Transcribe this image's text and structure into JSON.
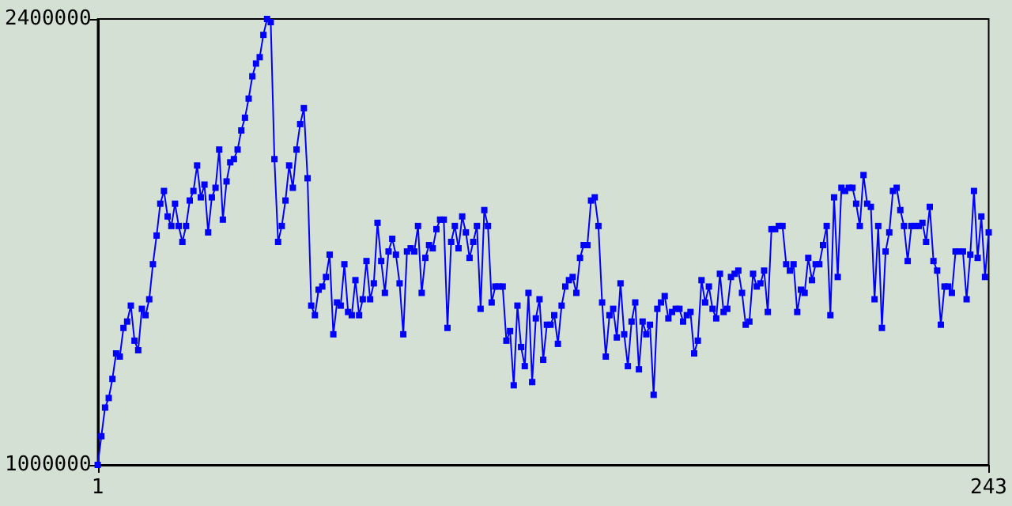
{
  "chart_data": {
    "type": "line",
    "marker": "square",
    "line_style": "solid",
    "grid": false,
    "xlim": [
      1,
      243
    ],
    "xticks": [
      1,
      243
    ],
    "ylim": [
      1000000,
      2400000
    ],
    "yticks": [
      1000000,
      2400000
    ],
    "series": [
      {
        "color": "#0000ff",
        "x": [
          1,
          2,
          3,
          4,
          5,
          6,
          7,
          8,
          9,
          10,
          11,
          12,
          13,
          14,
          15,
          16,
          17,
          18,
          19,
          20,
          21,
          22,
          23,
          24,
          25,
          26,
          27,
          28,
          29,
          30,
          31,
          32,
          33,
          34,
          35,
          36,
          37,
          38,
          39,
          40,
          41,
          42,
          43,
          44,
          45,
          46,
          47,
          48,
          49,
          50,
          51,
          52,
          53,
          54,
          55,
          56,
          57,
          58,
          59,
          60,
          61,
          62,
          63,
          64,
          65,
          66,
          67,
          68,
          69,
          70,
          71,
          72,
          73,
          74,
          75,
          76,
          77,
          78,
          79,
          80,
          81,
          82,
          83,
          84,
          85,
          86,
          87,
          88,
          89,
          90,
          91,
          92,
          93,
          94,
          95,
          96,
          97,
          98,
          99,
          100,
          101,
          102,
          103,
          104,
          105,
          106,
          107,
          108,
          109,
          110,
          111,
          112,
          113,
          114,
          115,
          116,
          117,
          118,
          119,
          120,
          121,
          122,
          123,
          124,
          125,
          126,
          127,
          128,
          129,
          130,
          131,
          132,
          133,
          134,
          135,
          136,
          137,
          138,
          139,
          140,
          141,
          142,
          143,
          144,
          145,
          146,
          147,
          148,
          149,
          150,
          151,
          152,
          153,
          154,
          155,
          156,
          157,
          158,
          159,
          160,
          161,
          162,
          163,
          164,
          165,
          166,
          167,
          168,
          169,
          170,
          171,
          172,
          173,
          174,
          175,
          176,
          177,
          178,
          179,
          180,
          181,
          182,
          183,
          184,
          185,
          186,
          187,
          188,
          189,
          190,
          191,
          192,
          193,
          194,
          195,
          196,
          197,
          198,
          199,
          200,
          201,
          202,
          203,
          204,
          205,
          206,
          207,
          208,
          209,
          210,
          211,
          212,
          213,
          214,
          215,
          216,
          217,
          218,
          219,
          220,
          221,
          222,
          223,
          224,
          225,
          226,
          227,
          228,
          229,
          230,
          231,
          232,
          233,
          234,
          235,
          236,
          237,
          238,
          239,
          240,
          241,
          242,
          243
        ],
        "values": [
          1000000,
          1090000,
          1180000,
          1210000,
          1270000,
          1350000,
          1340000,
          1430000,
          1450000,
          1500000,
          1390000,
          1360000,
          1490000,
          1470000,
          1520000,
          1630000,
          1720000,
          1820000,
          1860000,
          1780000,
          1750000,
          1820000,
          1750000,
          1700000,
          1750000,
          1830000,
          1860000,
          1940000,
          1840000,
          1880000,
          1730000,
          1840000,
          1870000,
          1990000,
          1770000,
          1890000,
          1950000,
          1960000,
          1990000,
          2050000,
          2090000,
          2150000,
          2220000,
          2260000,
          2280000,
          2350000,
          2400000,
          2390000,
          1960000,
          1700000,
          1750000,
          1830000,
          1940000,
          1870000,
          1990000,
          2070000,
          2120000,
          1900000,
          1500000,
          1470000,
          1550000,
          1560000,
          1590000,
          1660000,
          1410000,
          1510000,
          1500000,
          1630000,
          1480000,
          1470000,
          1580000,
          1470000,
          1520000,
          1640000,
          1520000,
          1570000,
          1760000,
          1640000,
          1540000,
          1670000,
          1710000,
          1660000,
          1570000,
          1410000,
          1670000,
          1680000,
          1670000,
          1750000,
          1540000,
          1650000,
          1690000,
          1680000,
          1740000,
          1770000,
          1770000,
          1430000,
          1700000,
          1750000,
          1680000,
          1780000,
          1730000,
          1650000,
          1700000,
          1750000,
          1490000,
          1800000,
          1750000,
          1510000,
          1560000,
          1560000,
          1560000,
          1390000,
          1420000,
          1250000,
          1500000,
          1370000,
          1310000,
          1540000,
          1260000,
          1460000,
          1520000,
          1330000,
          1440000,
          1440000,
          1470000,
          1380000,
          1500000,
          1560000,
          1580000,
          1590000,
          1540000,
          1650000,
          1690000,
          1690000,
          1830000,
          1840000,
          1750000,
          1510000,
          1340000,
          1470000,
          1490000,
          1400000,
          1570000,
          1410000,
          1310000,
          1450000,
          1510000,
          1300000,
          1450000,
          1410000,
          1440000,
          1220000,
          1490000,
          1510000,
          1530000,
          1460000,
          1480000,
          1490000,
          1490000,
          1450000,
          1470000,
          1480000,
          1350000,
          1390000,
          1580000,
          1510000,
          1560000,
          1490000,
          1460000,
          1600000,
          1480000,
          1490000,
          1590000,
          1600000,
          1610000,
          1540000,
          1440000,
          1450000,
          1600000,
          1560000,
          1570000,
          1610000,
          1480000,
          1740000,
          1740000,
          1750000,
          1750000,
          1630000,
          1610000,
          1630000,
          1480000,
          1550000,
          1540000,
          1650000,
          1580000,
          1630000,
          1630000,
          1690000,
          1750000,
          1470000,
          1840000,
          1590000,
          1870000,
          1860000,
          1870000,
          1870000,
          1820000,
          1750000,
          1910000,
          1820000,
          1810000,
          1520000,
          1750000,
          1430000,
          1670000,
          1730000,
          1860000,
          1870000,
          1800000,
          1750000,
          1640000,
          1750000,
          1750000,
          1750000,
          1760000,
          1700000,
          1810000,
          1640000,
          1610000,
          1440000,
          1560000,
          1560000,
          1540000,
          1670000,
          1670000,
          1670000,
          1520000,
          1660000,
          1860000,
          1650000,
          1780000,
          1590000,
          1730000
        ]
      }
    ]
  }
}
